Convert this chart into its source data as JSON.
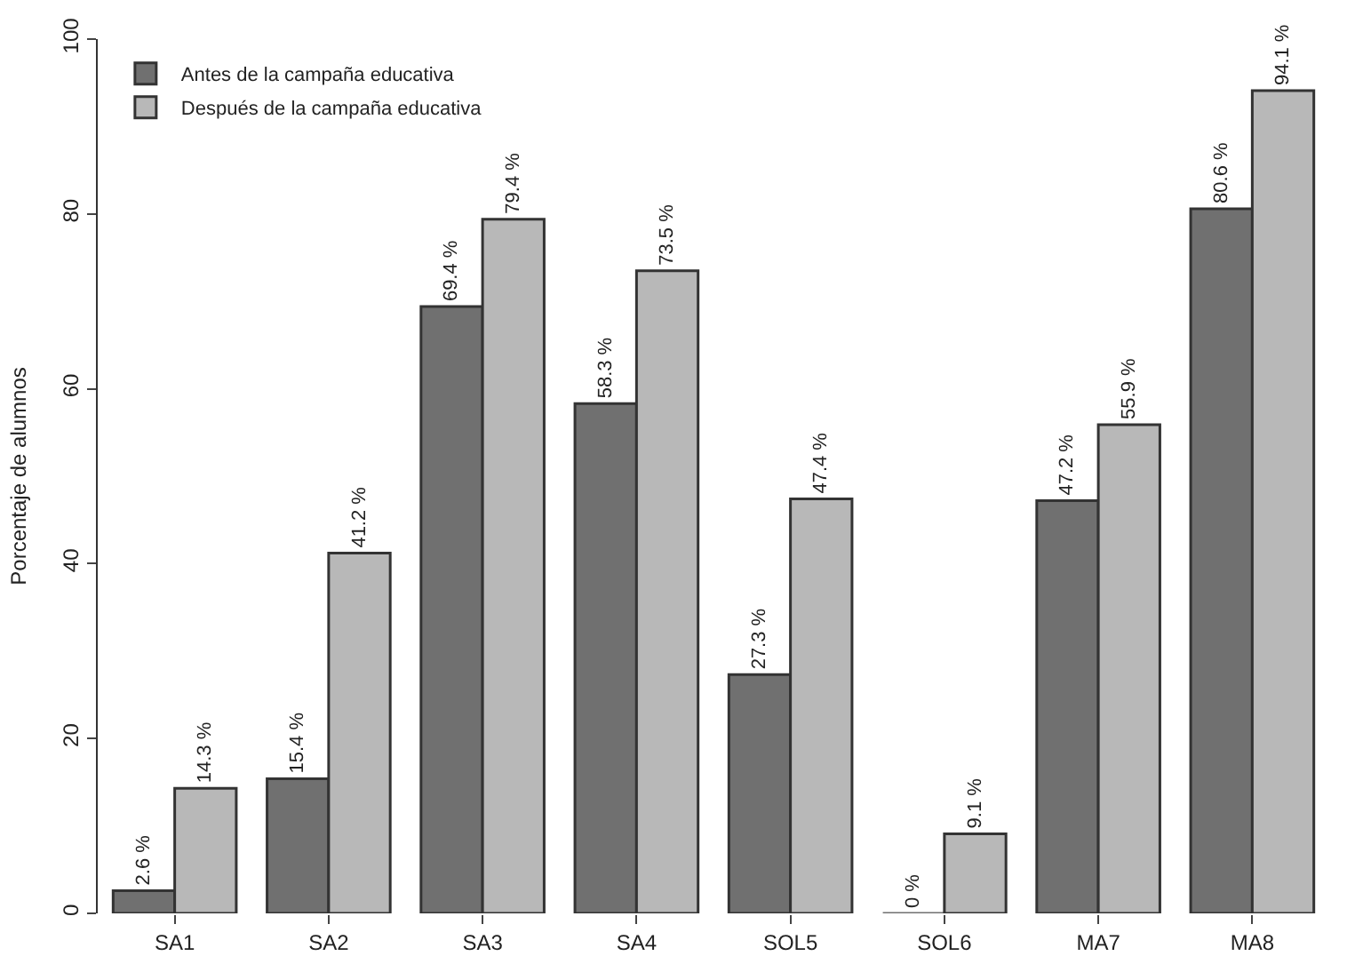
{
  "chart_data": {
    "type": "bar",
    "ylabel": "Porcentaje de alumnos",
    "categories": [
      "SA1",
      "SA2",
      "SA3",
      "SA4",
      "SOL5",
      "SOL6",
      "MA7",
      "MA8"
    ],
    "series": [
      {
        "name": "Antes de la campaña educativa",
        "color": "#707070",
        "values": [
          2.6,
          15.4,
          69.4,
          58.3,
          27.3,
          0,
          47.2,
          80.6
        ],
        "value_labels": [
          "2.6 %",
          "15.4 %",
          "69.4 %",
          "58.3 %",
          "27.3 %",
          "0 %",
          "47.2 %",
          "80.6 %"
        ]
      },
      {
        "name": "Después de la campaña educativa",
        "color": "#b8b8b8",
        "values": [
          14.3,
          41.2,
          79.4,
          73.5,
          47.4,
          9.1,
          55.9,
          94.1
        ],
        "value_labels": [
          "14.3 %",
          "41.2 %",
          "79.4 %",
          "73.5 %",
          "47.4 %",
          "9.1 %",
          "55.9 %",
          "94.1 %"
        ]
      }
    ],
    "ylim": [
      0,
      100
    ],
    "yticks": [
      0,
      20,
      40,
      60,
      80,
      100
    ],
    "legend": "top left"
  }
}
